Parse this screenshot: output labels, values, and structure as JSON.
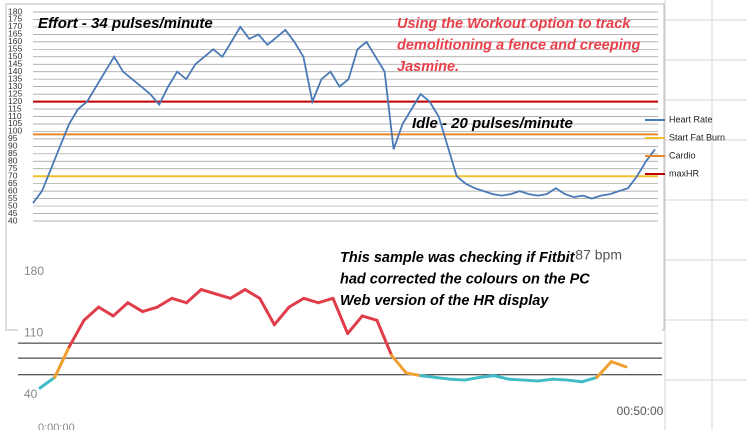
{
  "chart_data": [
    {
      "type": "line",
      "annotations": [
        {
          "lines": [
            "Effort - 34 pulses/minute"
          ],
          "color": "#000000"
        },
        {
          "lines": [
            "Using the Workout option to track",
            "demolitioning a fence and creeping",
            "Jasmine."
          ],
          "color": "#e8404a"
        },
        {
          "lines": [
            "Idle - 20 pulses/minute"
          ],
          "color": "#000000"
        }
      ],
      "ylim": [
        40,
        180
      ],
      "yticks": [
        40,
        45,
        50,
        55,
        60,
        65,
        70,
        75,
        80,
        85,
        90,
        95,
        100,
        105,
        110,
        115,
        120,
        125,
        130,
        135,
        140,
        145,
        150,
        155,
        160,
        165,
        170,
        175,
        180
      ],
      "grid": true,
      "series": [
        {
          "name": "Heart Rate",
          "color": "#4a7ab5",
          "values": [
            52,
            60,
            75,
            90,
            105,
            115,
            120,
            130,
            140,
            150,
            140,
            135,
            130,
            125,
            118,
            130,
            140,
            135,
            145,
            150,
            155,
            150,
            160,
            170,
            162,
            165,
            158,
            163,
            168,
            160,
            150,
            120,
            135,
            140,
            130,
            135,
            155,
            160,
            150,
            140,
            88,
            105,
            115,
            125,
            120,
            110,
            90,
            70,
            65,
            62,
            60,
            58,
            57,
            58,
            60,
            58,
            57,
            58,
            62,
            58,
            56,
            57,
            55,
            57,
            58,
            60,
            62,
            70,
            80,
            88
          ]
        }
      ],
      "reference_lines": [
        {
          "name": "Start Fat Burn",
          "value": 70,
          "color": "#f0c030"
        },
        {
          "name": "Cardio",
          "value": 98,
          "color": "#e8862a"
        },
        {
          "name": "maxHR",
          "value": 120,
          "color": "#c00000"
        }
      ],
      "legend": "right"
    },
    {
      "type": "zone-line",
      "annotations": [
        {
          "lines": [
            "This sample was checking if Fitbit",
            "had corrected the colours on the PC",
            "Web version of the HR display"
          ],
          "color": "#000000"
        }
      ],
      "ylim": [
        40,
        180
      ],
      "yticks": [
        40,
        110,
        180
      ],
      "current": "87 bpm",
      "x_labels": [
        "0:00:00",
        "00:50:00"
      ],
      "hlines": [
        99,
        82,
        63
      ],
      "zone_colors": [
        "#e03c4a",
        "#f0a030",
        "#3fbcc8"
      ],
      "values": [
        48,
        60,
        95,
        125,
        140,
        130,
        145,
        135,
        140,
        150,
        145,
        160,
        155,
        150,
        160,
        150,
        120,
        140,
        150,
        145,
        150,
        110,
        130,
        125,
        85,
        65,
        62,
        60,
        58,
        57,
        60,
        62,
        58,
        57,
        56,
        58,
        57,
        55,
        60,
        78,
        72
      ]
    }
  ]
}
